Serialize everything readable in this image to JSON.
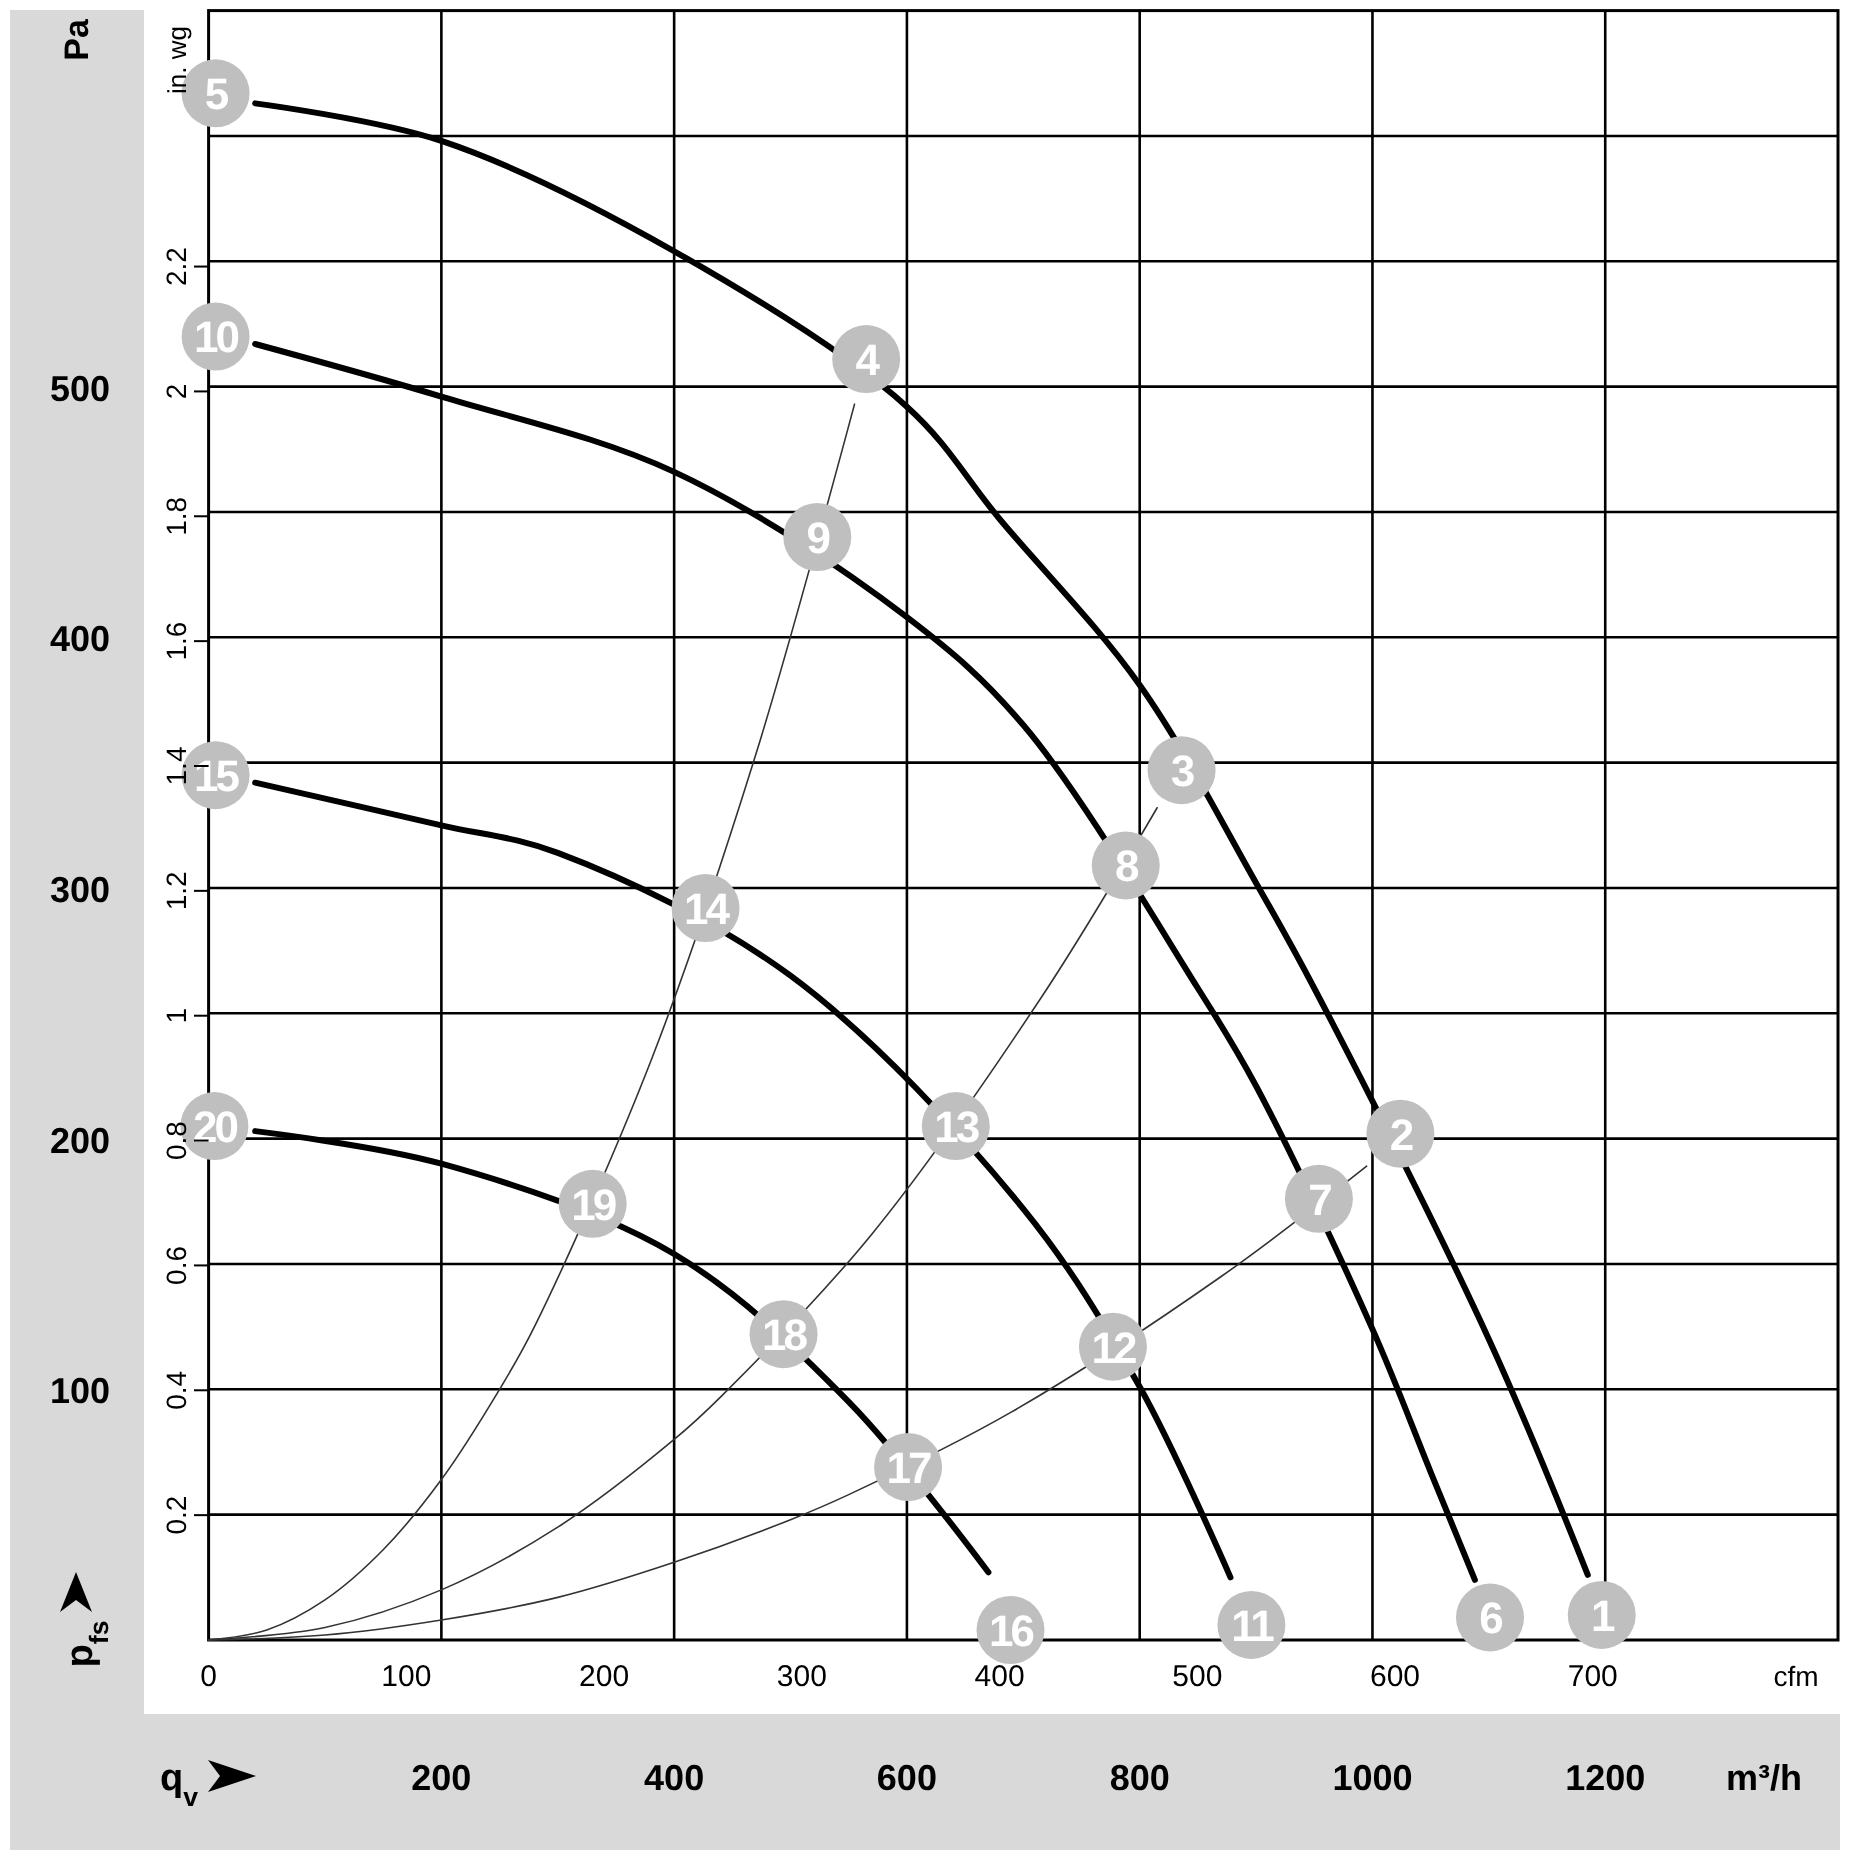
{
  "chart_data": {
    "type": "line",
    "xlabel": "m³/h",
    "x2label": "cfm",
    "ylabel": "Pa",
    "y2label": "in. wg",
    "xlim": [
      0,
      1400
    ],
    "xticks": [
      200,
      400,
      600,
      800,
      1000,
      1200
    ],
    "x2lim": [
      0,
      824
    ],
    "x2ticks": [
      0,
      100,
      200,
      300,
      400,
      500,
      600,
      700
    ],
    "ylim": [
      0,
      650
    ],
    "yticks": [
      {
        "value": 50,
        "label": null
      },
      100,
      {
        "value": 150,
        "label": null
      },
      200,
      {
        "value": 250,
        "label": null
      },
      300,
      {
        "value": 350,
        "label": null
      },
      400,
      {
        "value": 450,
        "label": null
      },
      500,
      {
        "value": 550,
        "label": null
      },
      {
        "value": 600,
        "label": null
      }
    ],
    "y2lim": [
      0,
      2.61
    ],
    "y2ticks": [
      0.2,
      0.4,
      0.6,
      0.8,
      1,
      1.2,
      1.4,
      1.6,
      1.8,
      2,
      2.2
    ],
    "grid": true,
    "line_style": "solid",
    "series": [
      {
        "color": "#000000",
        "x": [
          40,
          200,
          400,
          600,
          680,
          800,
          900,
          950,
          1100,
          1185
        ],
        "values": [
          613,
          598,
          554,
          492,
          447,
          381,
          302,
          260,
          120,
          26
        ]
      },
      {
        "color": "#000000",
        "x": [
          40,
          200,
          400,
          600,
          700,
          850,
          900,
          1000,
          1050,
          1088
        ],
        "values": [
          517,
          496,
          466,
          408,
          365,
          260,
          221,
          124,
          67,
          24
        ]
      },
      {
        "color": "#000000",
        "x": [
          40,
          200,
          300,
          500,
          700,
          800,
          878
        ],
        "values": [
          342,
          325,
          314,
          265,
          172,
          101,
          25
        ]
      },
      {
        "color": "#000000",
        "x": [
          40,
          200,
          400,
          550,
          670
        ],
        "values": [
          203,
          190,
          154,
          95,
          27
        ]
      },
      {
        "color": "#333333",
        "x": [
          0,
          50,
          100,
          150,
          200,
          250,
          280,
          380,
          470,
          555
        ],
        "values": [
          0,
          4,
          16,
          36,
          64,
          100,
          125,
          231,
          353,
          493
        ]
      },
      {
        "color": "#333333",
        "x": [
          0,
          100,
          200,
          300,
          400,
          440,
          570,
          715,
          815
        ],
        "values": [
          0,
          5,
          20,
          45,
          80,
          97,
          162,
          256,
          332
        ]
      },
      {
        "color": "#333333",
        "x": [
          0,
          100,
          200,
          300,
          400,
          500,
          550,
          690,
          870,
          995
        ],
        "values": [
          0,
          2,
          8,
          17,
          31,
          48,
          58,
          91,
          145,
          189
        ]
      }
    ],
    "annotations": [
      "p$_{fs}$",
      "q$_{v}$",
      {
        "text": "1",
        "x": 1197,
        "y": 10
      },
      {
        "text": "2",
        "x": 1024,
        "y": 202
      },
      {
        "text": "3",
        "x": 836,
        "y": 347
      },
      {
        "text": "4",
        "x": 565,
        "y": 511
      },
      {
        "text": "5",
        "x": 6,
        "y": 617
      },
      {
        "text": "6",
        "x": 1101,
        "y": 9
      },
      {
        "text": "7",
        "x": 954,
        "y": 176
      },
      {
        "text": "8",
        "x": 788,
        "y": 309
      },
      {
        "text": "9",
        "x": 523,
        "y": 440
      },
      {
        "text": "10",
        "x": 6,
        "y": 520
      },
      {
        "text": "11",
        "x": 896,
        "y": 6
      },
      {
        "text": "12",
        "x": 777,
        "y": 117
      },
      {
        "text": "13",
        "x": 642,
        "y": 205
      },
      {
        "text": "14",
        "x": 427,
        "y": 292
      },
      {
        "text": "15",
        "x": 6,
        "y": 345
      },
      {
        "text": "16",
        "x": 689,
        "y": 4
      },
      {
        "text": "17",
        "x": 601,
        "y": 69
      },
      {
        "text": "18",
        "x": 494,
        "y": 122
      },
      {
        "text": "19",
        "x": 330,
        "y": 174
      },
      {
        "text": "20",
        "x": 5,
        "y": 205
      }
    ]
  }
}
